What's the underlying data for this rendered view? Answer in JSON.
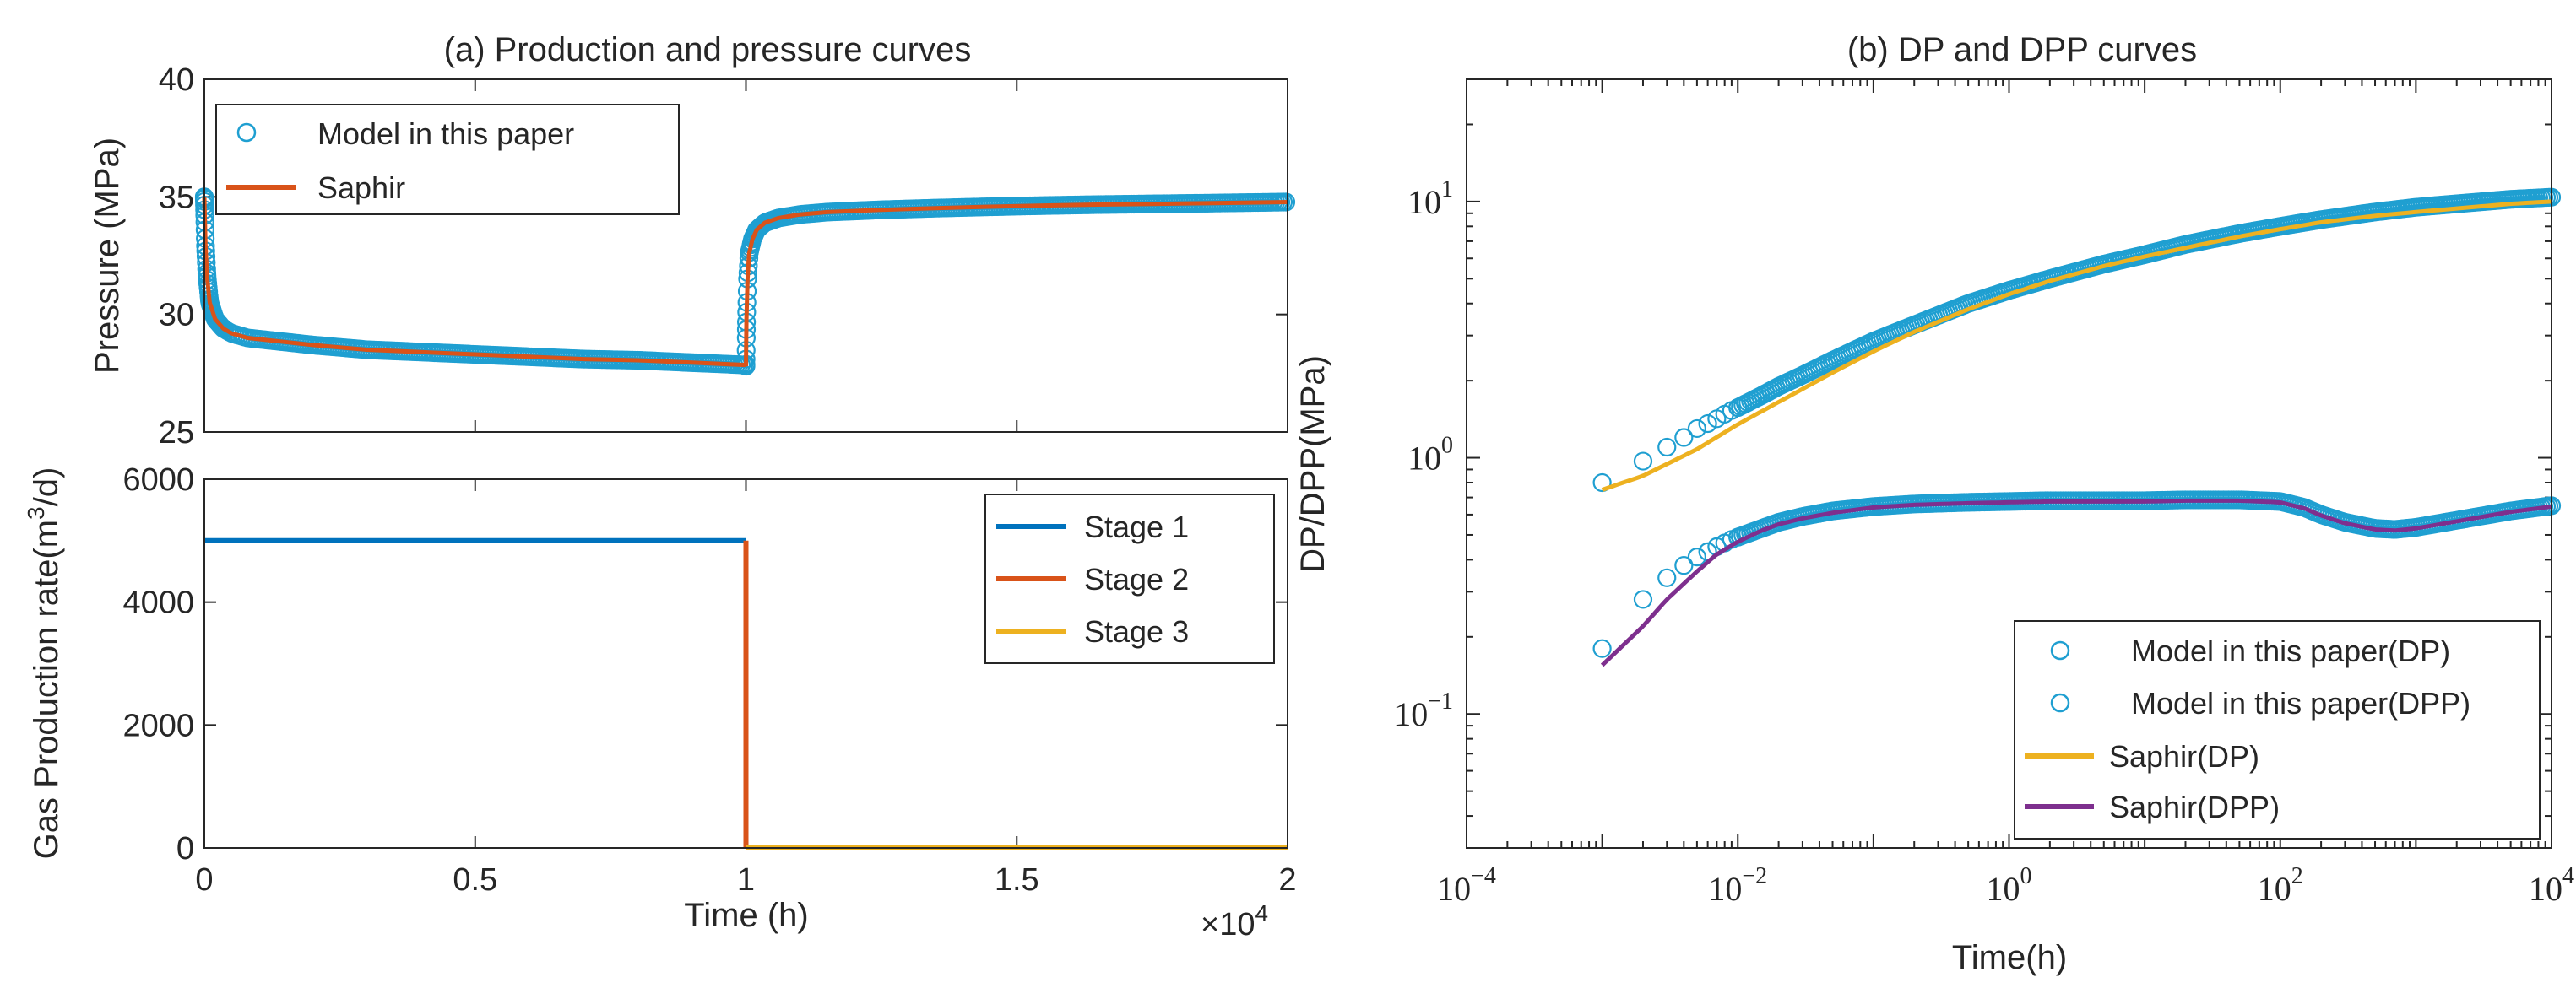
{
  "chart_data": [
    {
      "id": "top",
      "type": "scatter",
      "title": "(a) Production and pressure curves",
      "xlabel": "",
      "ylabel": "Pressure (MPa)",
      "xlim": [
        0,
        20000
      ],
      "ylim": [
        25,
        40
      ],
      "yticks": [
        25,
        30,
        35,
        40
      ],
      "ytick_labels": [
        "25",
        "30",
        "35",
        "40"
      ],
      "legend": {
        "position": "top-left",
        "entries": [
          {
            "label": "Model in this paper",
            "marker": "circle",
            "color": "#1f9fd1"
          },
          {
            "label": "Saphir",
            "marker": "line",
            "color": "#d95319"
          }
        ]
      },
      "series": [
        {
          "name": "Model in this paper",
          "color": "#1f9fd1",
          "x": [
            0,
            20,
            50,
            100,
            200,
            350,
            500,
            800,
            1200,
            2000,
            3000,
            4000,
            5000,
            6000,
            7000,
            8000,
            9000,
            9990,
            10000,
            10010,
            10030,
            10060,
            10120,
            10200,
            10350,
            10600,
            11000,
            11500,
            12500,
            13500,
            14500,
            15500,
            16500,
            17500,
            18500,
            20000
          ],
          "y": [
            35.0,
            33.0,
            31.6,
            30.5,
            29.8,
            29.4,
            29.2,
            29.0,
            28.9,
            28.7,
            28.5,
            28.4,
            28.3,
            28.2,
            28.1,
            28.05,
            27.95,
            27.85,
            27.8,
            29.8,
            31.5,
            32.6,
            33.2,
            33.6,
            33.9,
            34.1,
            34.25,
            34.35,
            34.45,
            34.52,
            34.58,
            34.63,
            34.67,
            34.7,
            34.73,
            34.78
          ]
        },
        {
          "name": "Saphir",
          "color": "#d95319",
          "x": [
            0,
            20,
            50,
            100,
            200,
            350,
            500,
            800,
            1200,
            2000,
            3000,
            4000,
            5000,
            6000,
            7000,
            8000,
            9000,
            9990,
            10000,
            10010,
            10030,
            10060,
            10120,
            10200,
            10350,
            10600,
            11000,
            11500,
            12500,
            13500,
            14500,
            15500,
            16500,
            17500,
            18500,
            20000
          ],
          "y": [
            35.0,
            33.0,
            31.6,
            30.5,
            29.8,
            29.4,
            29.2,
            29.0,
            28.9,
            28.7,
            28.5,
            28.4,
            28.3,
            28.2,
            28.1,
            28.05,
            27.95,
            27.85,
            27.8,
            29.8,
            31.5,
            32.6,
            33.2,
            33.6,
            33.9,
            34.1,
            34.25,
            34.35,
            34.45,
            34.52,
            34.58,
            34.63,
            34.67,
            34.7,
            34.73,
            34.78
          ]
        }
      ]
    },
    {
      "id": "bottom",
      "type": "line",
      "title": "",
      "xlabel": "Time (h)",
      "ylabel": "Gas Production rate(m",
      "ylabel_sup": "3",
      "ylabel_suffix": "/d)",
      "xlim": [
        0,
        20000
      ],
      "ylim": [
        0,
        6000
      ],
      "xticks": [
        0,
        5000,
        10000,
        15000,
        20000
      ],
      "xtick_labels": [
        "0",
        "0.5",
        "1",
        "1.5",
        "2"
      ],
      "yticks": [
        0,
        2000,
        4000,
        6000
      ],
      "ytick_labels": [
        "0",
        "2000",
        "4000",
        "6000"
      ],
      "x_exponent": {
        "prefix": "×10",
        "exp": "4"
      },
      "legend": {
        "position": "top-right",
        "entries": [
          {
            "label": "Stage 1",
            "color": "#0072bd"
          },
          {
            "label": "Stage 2",
            "color": "#d95319"
          },
          {
            "label": "Stage 3",
            "color": "#edb120"
          }
        ]
      },
      "series": [
        {
          "name": "Stage 1",
          "color": "#0072bd",
          "x": [
            0,
            10000
          ],
          "y": [
            5000,
            5000
          ]
        },
        {
          "name": "Stage 2",
          "color": "#d95319",
          "x": [
            10000,
            10000
          ],
          "y": [
            5000,
            0
          ]
        },
        {
          "name": "Stage 3",
          "color": "#edb120",
          "x": [
            10000,
            20000
          ],
          "y": [
            0,
            0
          ]
        }
      ]
    },
    {
      "id": "loglog",
      "type": "line",
      "title": "(b) DP and DPP curves",
      "xlabel": "Time(h)",
      "ylabel": "DP/DPP(MPa)",
      "xscale": "log",
      "yscale": "log",
      "xlim": [
        0.0001,
        10000
      ],
      "ylim": [
        0.03,
        30
      ],
      "xticks": [
        0.0001,
        0.01,
        1,
        100,
        10000
      ],
      "xtick_base": [
        "10",
        "10",
        "10",
        "10",
        "10"
      ],
      "xtick_exp": [
        "−4",
        "−2",
        "0",
        "2",
        "4"
      ],
      "yticks": [
        0.1,
        1,
        10
      ],
      "ytick_base": [
        "10",
        "10",
        "10"
      ],
      "ytick_exp": [
        "−1",
        "0",
        "1"
      ],
      "legend": {
        "position": "bottom-right",
        "entries": [
          {
            "label": "Model in this paper(DP)",
            "marker": "circle",
            "color": "#1f9fd1"
          },
          {
            "label": "Model in this paper(DPP)",
            "marker": "circle",
            "color": "#1f9fd1"
          },
          {
            "label": "Saphir(DP)",
            "marker": "line",
            "color": "#edb120"
          },
          {
            "label": "Saphir(DPP)",
            "marker": "line",
            "color": "#7e2f8e"
          }
        ]
      },
      "series": [
        {
          "name": "Model in this paper(DP)",
          "color": "#1f9fd1",
          "x": [
            0.001,
            0.002,
            0.003,
            0.004,
            0.005,
            0.006,
            0.007,
            0.008,
            0.009,
            0.01,
            0.015,
            0.02,
            0.03,
            0.05,
            0.1,
            0.2,
            0.5,
            1,
            2,
            5,
            10,
            20,
            50,
            100,
            200,
            500,
            1000,
            2000,
            5000,
            10000
          ],
          "y": [
            0.8,
            0.97,
            1.1,
            1.2,
            1.3,
            1.36,
            1.42,
            1.48,
            1.53,
            1.57,
            1.75,
            1.9,
            2.1,
            2.4,
            2.85,
            3.3,
            4.0,
            4.5,
            5.0,
            5.7,
            6.2,
            6.8,
            7.5,
            8.0,
            8.5,
            9.1,
            9.5,
            9.8,
            10.2,
            10.4
          ]
        },
        {
          "name": "Model in this paper(DPP)",
          "color": "#1f9fd1",
          "x": [
            0.001,
            0.002,
            0.003,
            0.004,
            0.005,
            0.006,
            0.007,
            0.008,
            0.009,
            0.01,
            0.015,
            0.02,
            0.03,
            0.05,
            0.1,
            0.2,
            0.5,
            1,
            2,
            5,
            10,
            20,
            50,
            100,
            150,
            200,
            300,
            500,
            700,
            1000,
            2000,
            5000,
            10000
          ],
          "y": [
            0.18,
            0.28,
            0.34,
            0.38,
            0.41,
            0.43,
            0.45,
            0.465,
            0.48,
            0.49,
            0.53,
            0.56,
            0.59,
            0.62,
            0.645,
            0.66,
            0.67,
            0.675,
            0.68,
            0.68,
            0.68,
            0.685,
            0.685,
            0.675,
            0.64,
            0.6,
            0.56,
            0.53,
            0.525,
            0.535,
            0.57,
            0.62,
            0.65
          ]
        },
        {
          "name": "Saphir(DP)",
          "color": "#edb120",
          "x": [
            0.001,
            0.002,
            0.005,
            0.01,
            0.02,
            0.05,
            0.1,
            0.2,
            0.5,
            1,
            2,
            5,
            10,
            20,
            50,
            100,
            200,
            500,
            1000,
            2000,
            5000,
            10000
          ],
          "y": [
            0.75,
            0.85,
            1.08,
            1.35,
            1.65,
            2.15,
            2.6,
            3.1,
            3.8,
            4.35,
            4.9,
            5.6,
            6.1,
            6.6,
            7.3,
            7.8,
            8.3,
            8.8,
            9.1,
            9.4,
            9.8,
            10.0
          ]
        },
        {
          "name": "Saphir(DPP)",
          "color": "#7e2f8e",
          "x": [
            0.001,
            0.002,
            0.003,
            0.005,
            0.007,
            0.01,
            0.015,
            0.02,
            0.03,
            0.05,
            0.1,
            0.2,
            0.5,
            1,
            2,
            5,
            10,
            20,
            50,
            100,
            150,
            200,
            300,
            500,
            700,
            1000,
            2000,
            5000,
            10000
          ],
          "y": [
            0.155,
            0.22,
            0.28,
            0.36,
            0.42,
            0.47,
            0.52,
            0.55,
            0.58,
            0.61,
            0.64,
            0.655,
            0.665,
            0.67,
            0.675,
            0.675,
            0.675,
            0.68,
            0.68,
            0.67,
            0.635,
            0.595,
            0.555,
            0.525,
            0.52,
            0.53,
            0.565,
            0.615,
            0.645
          ]
        }
      ]
    }
  ]
}
